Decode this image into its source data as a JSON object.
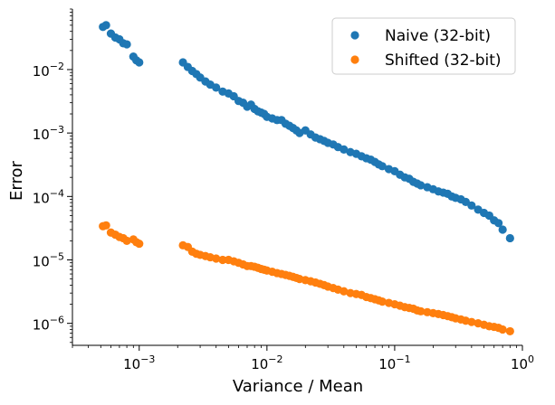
{
  "chart_data": {
    "type": "scatter",
    "title": "",
    "xlabel": "Variance / Mean",
    "ylabel": "Error",
    "xscale": "log",
    "yscale": "log",
    "xlim": [
      0.0003,
      1.0
    ],
    "ylim": [
      4.5e-07,
      0.09
    ],
    "grid": false,
    "legend_position": "top-right",
    "x_ticks": [
      {
        "value": 0.001,
        "base": "10",
        "exp": "−3"
      },
      {
        "value": 0.01,
        "base": "10",
        "exp": "−2"
      },
      {
        "value": 0.1,
        "base": "10",
        "exp": "−1"
      },
      {
        "value": 1.0,
        "base": "10",
        "exp": "0"
      }
    ],
    "y_ticks": [
      {
        "value": 1e-06,
        "base": "10",
        "exp": "−6"
      },
      {
        "value": 1e-05,
        "base": "10",
        "exp": "−5"
      },
      {
        "value": 0.0001,
        "base": "10",
        "exp": "−4"
      },
      {
        "value": 0.001,
        "base": "10",
        "exp": "−3"
      },
      {
        "value": 0.01,
        "base": "10",
        "exp": "−2"
      }
    ],
    "series": [
      {
        "name": "Naive (32-bit)",
        "color": "#1f77b4",
        "x": [
          0.00052,
          0.00055,
          0.0006,
          0.00065,
          0.0007,
          0.00075,
          0.0008,
          0.0009,
          0.00095,
          0.001,
          0.0022,
          0.0024,
          0.0026,
          0.0028,
          0.003,
          0.0033,
          0.0036,
          0.004,
          0.0045,
          0.005,
          0.0055,
          0.006,
          0.0065,
          0.007,
          0.0075,
          0.008,
          0.0085,
          0.009,
          0.0095,
          0.01,
          0.011,
          0.012,
          0.013,
          0.014,
          0.015,
          0.016,
          0.017,
          0.018,
          0.02,
          0.022,
          0.024,
          0.026,
          0.028,
          0.03,
          0.033,
          0.036,
          0.04,
          0.045,
          0.05,
          0.055,
          0.06,
          0.065,
          0.07,
          0.075,
          0.08,
          0.09,
          0.1,
          0.11,
          0.12,
          0.13,
          0.14,
          0.15,
          0.16,
          0.18,
          0.2,
          0.22,
          0.24,
          0.26,
          0.28,
          0.3,
          0.33,
          0.36,
          0.4,
          0.45,
          0.5,
          0.55,
          0.6,
          0.65,
          0.7,
          0.8
        ],
        "y": [
          0.047,
          0.05,
          0.037,
          0.032,
          0.03,
          0.026,
          0.025,
          0.016,
          0.014,
          0.013,
          0.013,
          0.011,
          0.0095,
          0.0085,
          0.0075,
          0.0065,
          0.0058,
          0.0052,
          0.0045,
          0.0042,
          0.0038,
          0.0032,
          0.003,
          0.0026,
          0.0028,
          0.0024,
          0.0022,
          0.0021,
          0.002,
          0.0018,
          0.0017,
          0.0016,
          0.0016,
          0.0014,
          0.0013,
          0.0012,
          0.0011,
          0.001,
          0.0011,
          0.00095,
          0.00085,
          0.0008,
          0.00075,
          0.0007,
          0.00066,
          0.0006,
          0.00055,
          0.0005,
          0.00047,
          0.00043,
          0.0004,
          0.00038,
          0.00035,
          0.00032,
          0.0003,
          0.00027,
          0.00025,
          0.00022,
          0.0002,
          0.00019,
          0.00017,
          0.00016,
          0.00015,
          0.00014,
          0.00013,
          0.00012,
          0.000115,
          0.00011,
          0.0001,
          9.5e-05,
          9e-05,
          8.2e-05,
          7.2e-05,
          6.2e-05,
          5.5e-05,
          5e-05,
          4.2e-05,
          3.8e-05,
          3e-05,
          2.2e-05
        ]
      },
      {
        "name": "Shifted (32-bit)",
        "color": "#ff7f0e",
        "x": [
          0.00052,
          0.00055,
          0.0006,
          0.00065,
          0.0007,
          0.00075,
          0.0008,
          0.0009,
          0.00095,
          0.001,
          0.0022,
          0.0024,
          0.0026,
          0.0028,
          0.003,
          0.0033,
          0.0036,
          0.004,
          0.0045,
          0.005,
          0.0055,
          0.006,
          0.0065,
          0.007,
          0.0075,
          0.008,
          0.0085,
          0.009,
          0.0095,
          0.01,
          0.011,
          0.012,
          0.013,
          0.014,
          0.015,
          0.016,
          0.017,
          0.018,
          0.02,
          0.022,
          0.024,
          0.026,
          0.028,
          0.03,
          0.033,
          0.036,
          0.04,
          0.045,
          0.05,
          0.055,
          0.06,
          0.065,
          0.07,
          0.075,
          0.08,
          0.09,
          0.1,
          0.11,
          0.12,
          0.13,
          0.14,
          0.15,
          0.16,
          0.18,
          0.2,
          0.22,
          0.24,
          0.26,
          0.28,
          0.3,
          0.33,
          0.36,
          0.4,
          0.45,
          0.5,
          0.55,
          0.6,
          0.65,
          0.7,
          0.8
        ],
        "y": [
          3.4e-05,
          3.5e-05,
          2.7e-05,
          2.5e-05,
          2.3e-05,
          2.2e-05,
          2e-05,
          2.1e-05,
          1.9e-05,
          1.8e-05,
          1.7e-05,
          1.6e-05,
          1.35e-05,
          1.25e-05,
          1.2e-05,
          1.15e-05,
          1.1e-05,
          1.05e-05,
          1e-05,
          1e-05,
          9.5e-06,
          9e-06,
          8.5e-06,
          8e-06,
          8e-06,
          7.8e-06,
          7.5e-06,
          7.2e-06,
          7e-06,
          6.8e-06,
          6.5e-06,
          6.2e-06,
          6e-06,
          5.8e-06,
          5.6e-06,
          5.4e-06,
          5.2e-06,
          5e-06,
          4.8e-06,
          4.6e-06,
          4.4e-06,
          4.2e-06,
          4e-06,
          3.8e-06,
          3.6e-06,
          3.4e-06,
          3.2e-06,
          3e-06,
          2.9e-06,
          2.8e-06,
          2.6e-06,
          2.5e-06,
          2.4e-06,
          2.3e-06,
          2.2e-06,
          2.1e-06,
          2e-06,
          1.9e-06,
          1.8e-06,
          1.75e-06,
          1.7e-06,
          1.6e-06,
          1.55e-06,
          1.5e-06,
          1.45e-06,
          1.4e-06,
          1.35e-06,
          1.3e-06,
          1.25e-06,
          1.2e-06,
          1.15e-06,
          1.1e-06,
          1.05e-06,
          1e-06,
          9.5e-07,
          9e-07,
          8.8e-07,
          8.5e-07,
          8e-07,
          7.5e-07
        ]
      }
    ]
  }
}
